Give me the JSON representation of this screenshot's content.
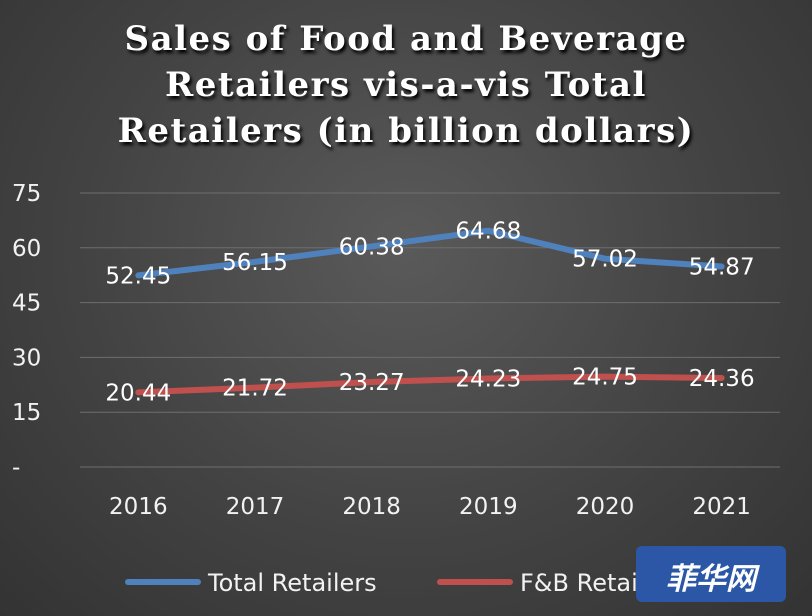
{
  "chart_data": {
    "type": "line",
    "title_lines": [
      "Sales of Food and Beverage",
      "Retailers vis-a-vis Total",
      "Retailers (in billion dollars)"
    ],
    "categories": [
      "2016",
      "2017",
      "2018",
      "2019",
      "2020",
      "2021"
    ],
    "y_ticks": [
      "75",
      "60",
      "45",
      "30",
      "15",
      "-"
    ],
    "ylim": [
      0,
      75
    ],
    "grid": true,
    "legend_position": "bottom",
    "series": [
      {
        "name": "Total Retailers",
        "color": "#4f81bd",
        "values": [
          52.45,
          56.15,
          60.38,
          64.68,
          57.02,
          54.87
        ],
        "labels": [
          "52.45",
          "56.15",
          "60.38",
          "64.68",
          "57.02",
          "54.87"
        ]
      },
      {
        "name": "F&B Retailers",
        "color": "#c0504d",
        "values": [
          20.44,
          21.72,
          23.27,
          24.23,
          24.75,
          24.36
        ],
        "labels": [
          "20.44",
          "21.72",
          "23.27",
          "24.23",
          "24.75",
          "24.36"
        ]
      }
    ]
  },
  "watermark": {
    "text": "菲华网"
  }
}
